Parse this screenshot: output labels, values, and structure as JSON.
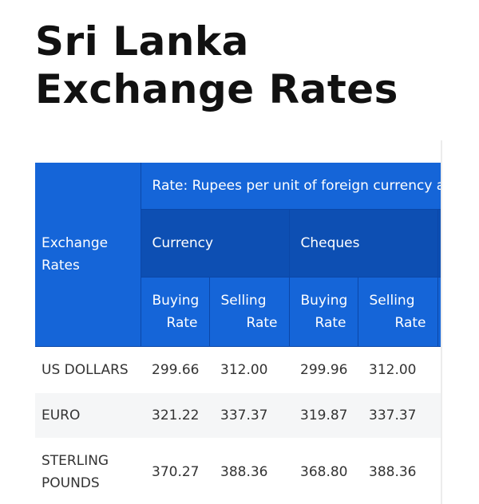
{
  "page": {
    "title": "Sri Lanka Exchange Rates"
  },
  "table": {
    "row_header": "Exchange Rates",
    "rate_caption": "Rate: Rupees per unit of foreign currency as at",
    "groups": [
      "Currency",
      "Cheques"
    ],
    "subheaders": {
      "buying_top": "Buying",
      "buying_bottom": "Rate",
      "selling_top": "Selling",
      "selling_bottom": "Rate"
    },
    "rows": [
      {
        "name": "US DOLLARS",
        "currency_buying": "299.66",
        "currency_selling": "312.00",
        "cheques_buying": "299.96",
        "cheques_selling": "312.00"
      },
      {
        "name": "EURO",
        "currency_buying": "321.22",
        "currency_selling": "337.37",
        "cheques_buying": "319.87",
        "cheques_selling": "337.37"
      },
      {
        "name": "STERLING POUNDS",
        "currency_buying": "370.27",
        "currency_selling": "388.36",
        "cheques_buying": "368.80",
        "cheques_selling": "388.36"
      }
    ]
  },
  "colors": {
    "header_blue": "#1565d8",
    "header_dark_blue": "#0d4fb3",
    "stripe": "#f5f6f7"
  }
}
